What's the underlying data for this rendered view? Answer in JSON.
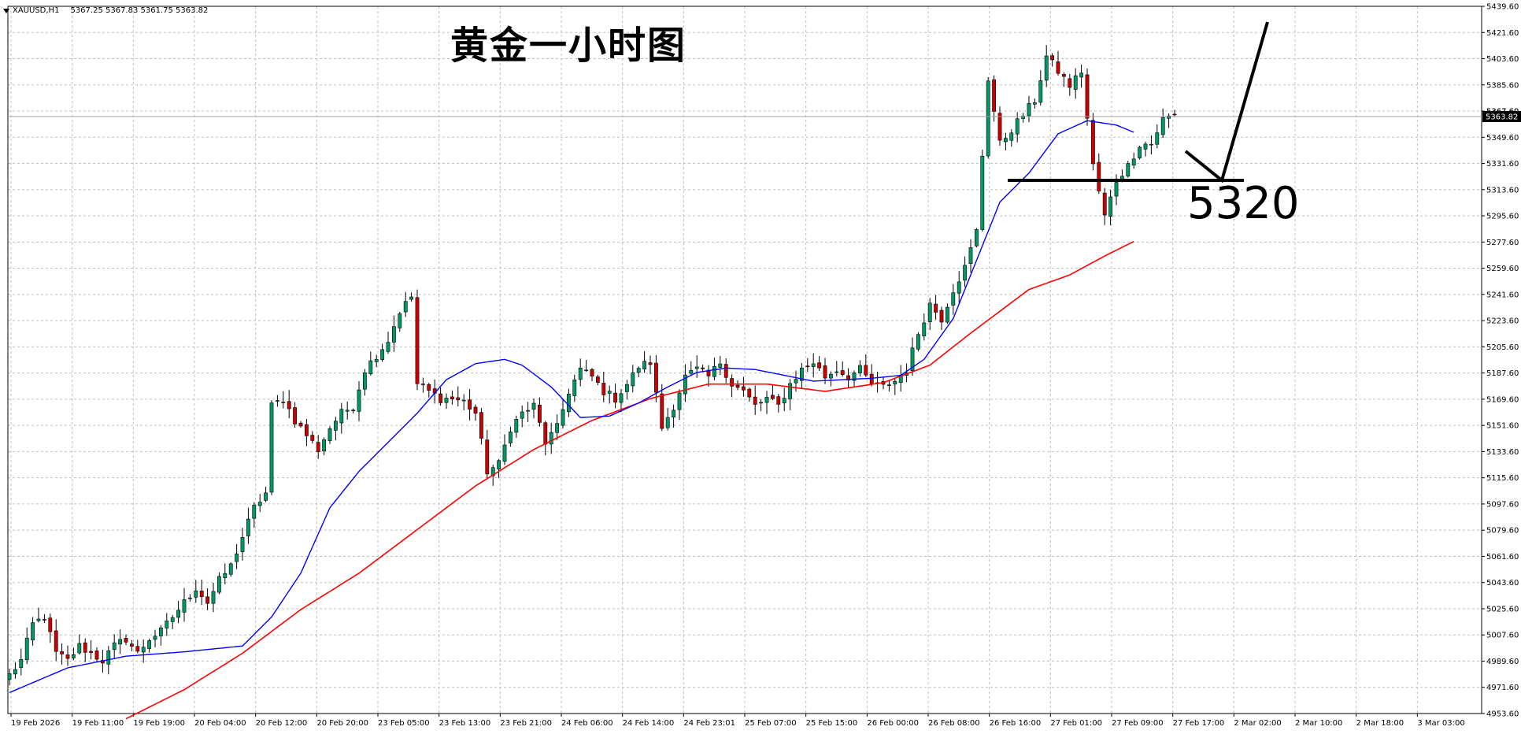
{
  "header": {
    "symbol": "XAUUSD,H1",
    "ohlc": "5367.25 5367.83 5361.75 5363.82"
  },
  "title": "黄金一小时图",
  "annotation": {
    "label": "5320"
  },
  "price_badges": {
    "current": "5363.82",
    "shadow": "5367.60"
  },
  "colors": {
    "bull": "#009966",
    "bear": "#cc0000",
    "ma_fast": "#0000ff",
    "ma_slow": "#ff0000",
    "grid": "#c0c0c0",
    "annotation": "#000000"
  },
  "icons": {
    "symbol_menu": "chevron-down-icon"
  },
  "chart_data": {
    "type": "candlestick",
    "title": "黄金一小时图",
    "symbol": "XAUUSD",
    "timeframe": "H1",
    "ylim": [
      4953.6,
      5439.6
    ],
    "yticks": [
      "5439.60",
      "5421.60",
      "5403.60",
      "5385.60",
      "5367.60",
      "5349.60",
      "5331.60",
      "5313.60",
      "5295.60",
      "5277.60",
      "5259.60",
      "5241.60",
      "5223.60",
      "5205.60",
      "5187.60",
      "5169.60",
      "5151.60",
      "5133.60",
      "5115.60",
      "5097.60",
      "5079.60",
      "5061.60",
      "5043.60",
      "5025.60",
      "5007.60",
      "4989.60",
      "4971.60",
      "4953.60"
    ],
    "xticks": [
      "19 Feb 2026",
      "19 Feb 11:00",
      "19 Feb 19:00",
      "20 Feb 04:00",
      "20 Feb 12:00",
      "20 Feb 20:00",
      "23 Feb 05:00",
      "23 Feb 13:00",
      "23 Feb 21:00",
      "24 Feb 06:00",
      "24 Feb 14:00",
      "24 Feb 23:01",
      "25 Feb 07:00",
      "25 Feb 15:00",
      "26 Feb 00:00",
      "26 Feb 08:00",
      "26 Feb 16:00",
      "27 Feb 01:00",
      "27 Feb 09:00",
      "27 Feb 17:00",
      "2 Mar 02:00",
      "2 Mar 10:00",
      "2 Mar 18:00",
      "3 Mar 03:00"
    ],
    "grid": true,
    "support_level": 5320,
    "ma_fast_anchors": [
      [
        0,
        4968
      ],
      [
        10,
        4985
      ],
      [
        20,
        4993
      ],
      [
        30,
        4996
      ],
      [
        40,
        5000
      ],
      [
        45,
        5020
      ],
      [
        50,
        5050
      ],
      [
        55,
        5095
      ],
      [
        60,
        5120
      ],
      [
        65,
        5140
      ],
      [
        70,
        5160
      ],
      [
        75,
        5183
      ],
      [
        80,
        5194
      ],
      [
        85,
        5197
      ],
      [
        88,
        5193
      ],
      [
        93,
        5178
      ],
      [
        98,
        5157
      ],
      [
        103,
        5158
      ],
      [
        108,
        5167
      ],
      [
        113,
        5178
      ],
      [
        118,
        5188
      ],
      [
        123,
        5191
      ],
      [
        128,
        5190
      ],
      [
        133,
        5186
      ],
      [
        138,
        5182
      ],
      [
        143,
        5183
      ],
      [
        148,
        5184
      ],
      [
        153,
        5186
      ],
      [
        157,
        5197
      ],
      [
        162,
        5225
      ],
      [
        166,
        5265
      ],
      [
        170,
        5305
      ],
      [
        175,
        5325
      ],
      [
        180,
        5352
      ],
      [
        185,
        5361
      ],
      [
        190,
        5358
      ],
      [
        193,
        5353
      ]
    ],
    "ma_slow_anchors": [
      [
        20,
        4950
      ],
      [
        30,
        4970
      ],
      [
        40,
        4995
      ],
      [
        50,
        5025
      ],
      [
        60,
        5050
      ],
      [
        70,
        5080
      ],
      [
        80,
        5110
      ],
      [
        90,
        5135
      ],
      [
        100,
        5155
      ],
      [
        110,
        5170
      ],
      [
        120,
        5180
      ],
      [
        130,
        5180
      ],
      [
        140,
        5175
      ],
      [
        150,
        5181
      ],
      [
        158,
        5193
      ],
      [
        165,
        5215
      ],
      [
        175,
        5245
      ],
      [
        182,
        5255
      ],
      [
        188,
        5268
      ],
      [
        193,
        5278
      ]
    ],
    "series": [
      {
        "name": "",
        "anchors": [
          [
            0,
            4980
          ],
          [
            2,
            4990
          ],
          [
            4,
            5015
          ],
          [
            6,
            5020
          ],
          [
            8,
            4995
          ],
          [
            10,
            4990
          ],
          [
            12,
            5000
          ],
          [
            14,
            4995
          ],
          [
            16,
            4990
          ],
          [
            18,
            5000
          ],
          [
            20,
            5005
          ],
          [
            22,
            4995
          ],
          [
            24,
            5005
          ],
          [
            26,
            5010
          ],
          [
            28,
            5020
          ],
          [
            30,
            5030
          ],
          [
            32,
            5040
          ],
          [
            34,
            5030
          ],
          [
            36,
            5045
          ],
          [
            38,
            5055
          ],
          [
            40,
            5075
          ],
          [
            42,
            5095
          ],
          [
            44,
            5105
          ],
          [
            45,
            5165
          ],
          [
            47,
            5170
          ],
          [
            49,
            5155
          ],
          [
            51,
            5145
          ],
          [
            53,
            5135
          ],
          [
            55,
            5150
          ],
          [
            57,
            5160
          ],
          [
            59,
            5165
          ],
          [
            61,
            5190
          ],
          [
            63,
            5200
          ],
          [
            65,
            5210
          ],
          [
            67,
            5230
          ],
          [
            69,
            5240
          ],
          [
            70,
            5180
          ],
          [
            72,
            5175
          ],
          [
            74,
            5170
          ],
          [
            76,
            5170
          ],
          [
            78,
            5168
          ],
          [
            80,
            5160
          ],
          [
            82,
            5120
          ],
          [
            84,
            5125
          ],
          [
            86,
            5150
          ],
          [
            88,
            5160
          ],
          [
            90,
            5165
          ],
          [
            92,
            5140
          ],
          [
            94,
            5150
          ],
          [
            96,
            5175
          ],
          [
            98,
            5190
          ],
          [
            100,
            5185
          ],
          [
            102,
            5175
          ],
          [
            104,
            5170
          ],
          [
            106,
            5180
          ],
          [
            108,
            5192
          ],
          [
            110,
            5195
          ],
          [
            112,
            5150
          ],
          [
            114,
            5165
          ],
          [
            116,
            5185
          ],
          [
            118,
            5190
          ],
          [
            120,
            5185
          ],
          [
            122,
            5195
          ],
          [
            124,
            5180
          ],
          [
            126,
            5175
          ],
          [
            128,
            5165
          ],
          [
            130,
            5170
          ],
          [
            132,
            5165
          ],
          [
            134,
            5180
          ],
          [
            136,
            5190
          ],
          [
            138,
            5195
          ],
          [
            140,
            5185
          ],
          [
            142,
            5190
          ],
          [
            144,
            5185
          ],
          [
            146,
            5190
          ],
          [
            148,
            5180
          ],
          [
            150,
            5178
          ],
          [
            152,
            5182
          ],
          [
            154,
            5190
          ],
          [
            156,
            5215
          ],
          [
            158,
            5235
          ],
          [
            160,
            5225
          ],
          [
            162,
            5245
          ],
          [
            164,
            5260
          ],
          [
            166,
            5285
          ],
          [
            168,
            5390
          ],
          [
            170,
            5345
          ],
          [
            172,
            5355
          ],
          [
            174,
            5365
          ],
          [
            176,
            5375
          ],
          [
            178,
            5405
          ],
          [
            180,
            5395
          ],
          [
            182,
            5385
          ],
          [
            184,
            5395
          ],
          [
            186,
            5330
          ],
          [
            188,
            5295
          ],
          [
            190,
            5320
          ],
          [
            192,
            5330
          ],
          [
            194,
            5345
          ],
          [
            196,
            5345
          ],
          [
            198,
            5362
          ],
          [
            200,
            5365
          ]
        ]
      }
    ]
  }
}
